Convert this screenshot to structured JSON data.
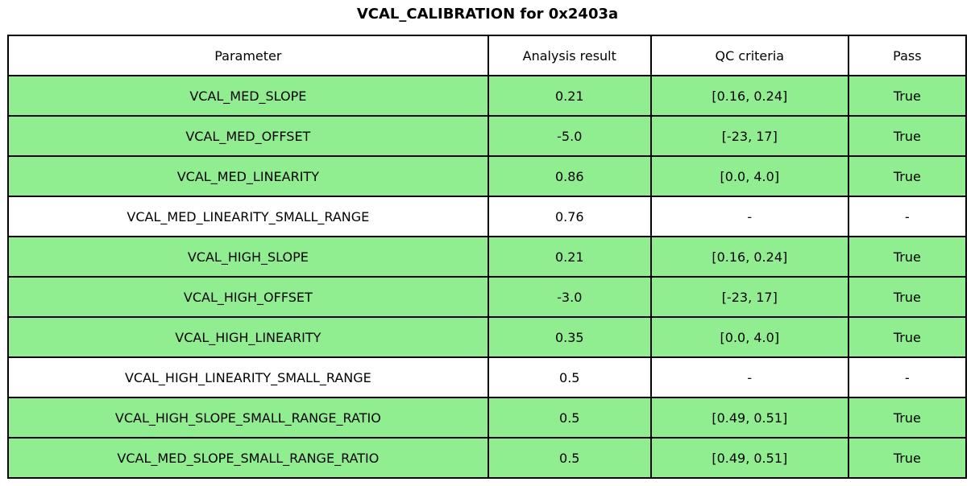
{
  "title": "VCAL_CALIBRATION for 0x2403a",
  "chart_data": {
    "type": "table",
    "title": "VCAL_CALIBRATION for 0x2403a",
    "columns": [
      "Parameter",
      "Analysis result",
      "QC criteria",
      "Pass"
    ],
    "rows": [
      {
        "parameter": "VCAL_MED_SLOPE",
        "analysis_result": "0.21",
        "qc_criteria": "[0.16, 0.24]",
        "pass": "True",
        "highlight": true
      },
      {
        "parameter": "VCAL_MED_OFFSET",
        "analysis_result": "-5.0",
        "qc_criteria": "[-23, 17]",
        "pass": "True",
        "highlight": true
      },
      {
        "parameter": "VCAL_MED_LINEARITY",
        "analysis_result": "0.86",
        "qc_criteria": "[0.0, 4.0]",
        "pass": "True",
        "highlight": true
      },
      {
        "parameter": "VCAL_MED_LINEARITY_SMALL_RANGE",
        "analysis_result": "0.76",
        "qc_criteria": "-",
        "pass": "-",
        "highlight": false
      },
      {
        "parameter": "VCAL_HIGH_SLOPE",
        "analysis_result": "0.21",
        "qc_criteria": "[0.16, 0.24]",
        "pass": "True",
        "highlight": true
      },
      {
        "parameter": "VCAL_HIGH_OFFSET",
        "analysis_result": "-3.0",
        "qc_criteria": "[-23, 17]",
        "pass": "True",
        "highlight": true
      },
      {
        "parameter": "VCAL_HIGH_LINEARITY",
        "analysis_result": "0.35",
        "qc_criteria": "[0.0, 4.0]",
        "pass": "True",
        "highlight": true
      },
      {
        "parameter": "VCAL_HIGH_LINEARITY_SMALL_RANGE",
        "analysis_result": "0.5",
        "qc_criteria": "-",
        "pass": "-",
        "highlight": false
      },
      {
        "parameter": "VCAL_HIGH_SLOPE_SMALL_RANGE_RATIO",
        "analysis_result": "0.5",
        "qc_criteria": "[0.49, 0.51]",
        "pass": "True",
        "highlight": true
      },
      {
        "parameter": "VCAL_MED_SLOPE_SMALL_RANGE_RATIO",
        "analysis_result": "0.5",
        "qc_criteria": "[0.49, 0.51]",
        "pass": "True",
        "highlight": true
      }
    ]
  },
  "colors": {
    "pass_row_bg": "#90EE90",
    "neutral_row_bg": "#ffffff",
    "border": "#000000",
    "text": "#000000",
    "page_bg": "#ffffff"
  }
}
